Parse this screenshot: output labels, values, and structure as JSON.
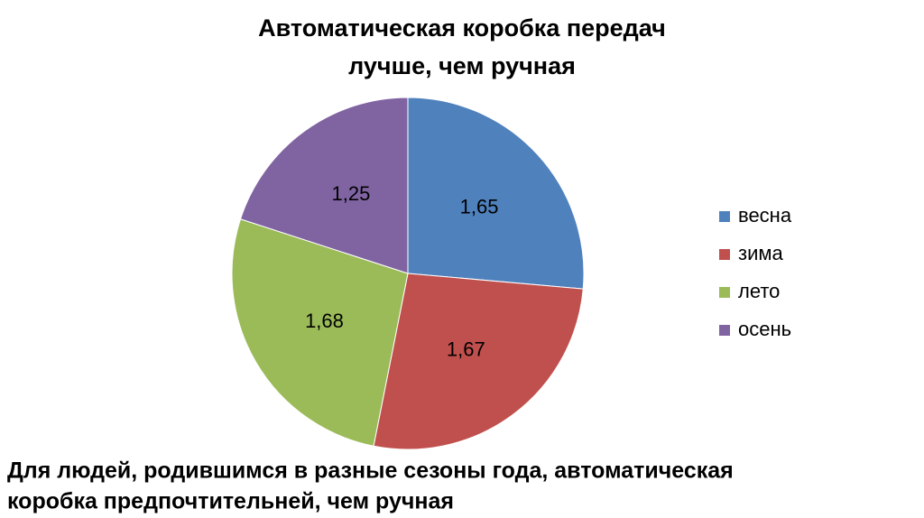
{
  "chart_data": {
    "type": "pie",
    "title": [
      "Автоматическая коробка передач",
      "лучше, чем ручная"
    ],
    "categories": [
      "весна",
      "зима",
      "лето",
      "осень"
    ],
    "values": [
      1.65,
      1.67,
      1.68,
      1.25
    ],
    "value_labels": [
      "1,65",
      "1,67",
      "1,68",
      "1,25"
    ],
    "colors": [
      "#4f81bd",
      "#c0504d",
      "#9bbb59",
      "#8064a2"
    ],
    "legend": "right",
    "caption": [
      "Для людей, родившимся в разные сезоны года, автоматическая",
      "коробка предпочтительней, чем ручная"
    ]
  }
}
